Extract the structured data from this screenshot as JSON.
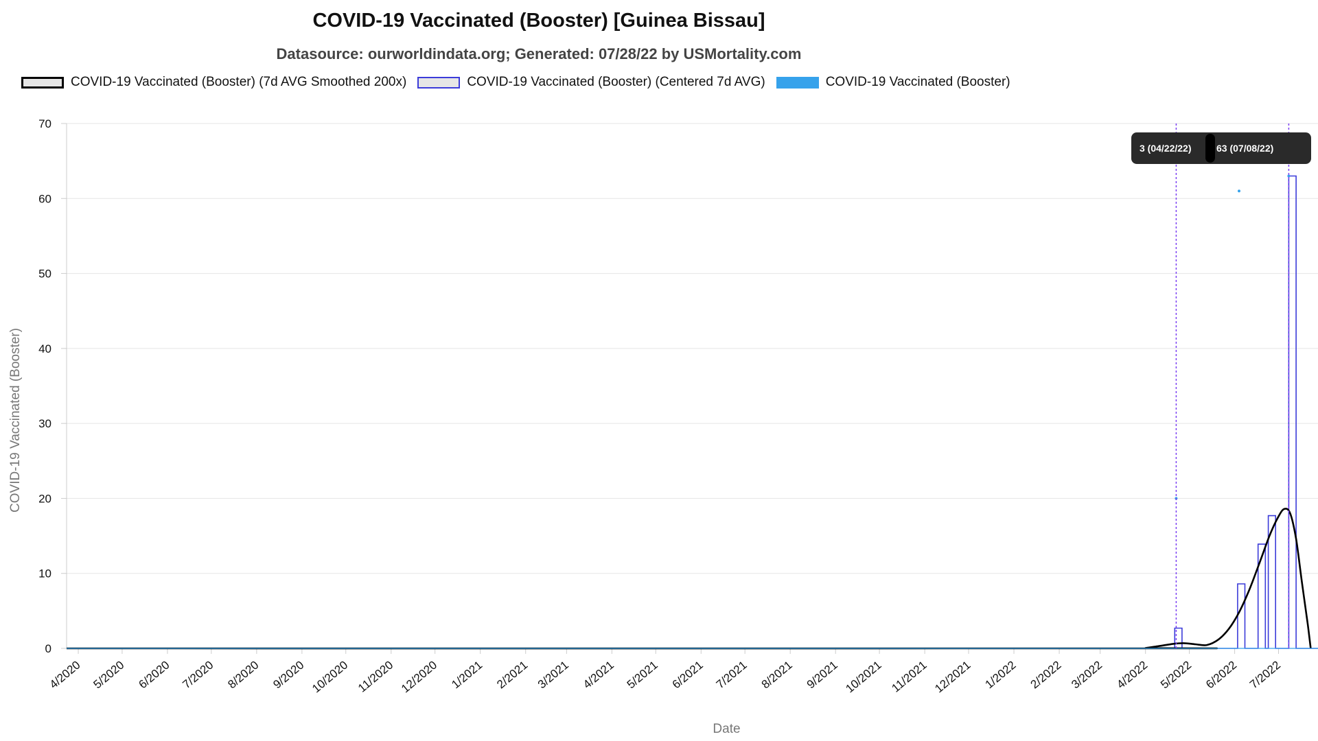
{
  "title": "COVID-19 Vaccinated (Booster) [Guinea Bissau]",
  "subtitle": "Datasource: ourworldindata.org; Generated: 07/28/22 by USMortality.com",
  "legend": [
    {
      "label": "COVID-19 Vaccinated (Booster) (7d AVG Smoothed 200x)",
      "swatch_fill": "#e6e6e6",
      "swatch_border": "#000000"
    },
    {
      "label": "COVID-19 Vaccinated (Booster) (Centered 7d AVG)",
      "swatch_fill": "#e6e6e6",
      "swatch_border": "#3b3bd9"
    },
    {
      "label": "COVID-19 Vaccinated (Booster)",
      "swatch_fill": "#36a2eb",
      "swatch_border": "#36a2eb"
    }
  ],
  "tooltips": [
    {
      "text": "3 (04/22/22)"
    },
    {
      "text": "63 (07/08/22)"
    }
  ],
  "colors": {
    "smoothed": "#000000",
    "centered": "#3b3bd9",
    "raw": "#36a2eb",
    "marker_line": "#7b3ff2",
    "grid": "#e5e5e5",
    "tooltip_bg": "#2a2a2a"
  },
  "chart_data": {
    "type": "line",
    "title": "COVID-19 Vaccinated (Booster) [Guinea Bissau]",
    "xlabel": "Date",
    "ylabel": "COVID-19 Vaccinated (Booster)",
    "xlim": [
      "2020-03-24",
      "2022-07-28"
    ],
    "ylim": [
      0,
      70
    ],
    "yticks": [
      0,
      10,
      20,
      30,
      40,
      50,
      60,
      70
    ],
    "xticks": [
      {
        "date": "2020-04-01",
        "label": "4/2020"
      },
      {
        "date": "2020-05-01",
        "label": "5/2020"
      },
      {
        "date": "2020-06-01",
        "label": "6/2020"
      },
      {
        "date": "2020-07-01",
        "label": "7/2020"
      },
      {
        "date": "2020-08-01",
        "label": "8/2020"
      },
      {
        "date": "2020-09-01",
        "label": "9/2020"
      },
      {
        "date": "2020-10-01",
        "label": "10/2020"
      },
      {
        "date": "2020-11-01",
        "label": "11/2020"
      },
      {
        "date": "2020-12-01",
        "label": "12/2020"
      },
      {
        "date": "2021-01-01",
        "label": "1/2021"
      },
      {
        "date": "2021-02-01",
        "label": "2/2021"
      },
      {
        "date": "2021-03-01",
        "label": "3/2021"
      },
      {
        "date": "2021-04-01",
        "label": "4/2021"
      },
      {
        "date": "2021-05-01",
        "label": "5/2021"
      },
      {
        "date": "2021-06-01",
        "label": "6/2021"
      },
      {
        "date": "2021-07-01",
        "label": "7/2021"
      },
      {
        "date": "2021-08-01",
        "label": "8/2021"
      },
      {
        "date": "2021-09-01",
        "label": "9/2021"
      },
      {
        "date": "2021-10-01",
        "label": "10/2021"
      },
      {
        "date": "2021-11-01",
        "label": "11/2021"
      },
      {
        "date": "2021-12-01",
        "label": "12/2021"
      },
      {
        "date": "2022-01-01",
        "label": "1/2022"
      },
      {
        "date": "2022-02-01",
        "label": "2/2022"
      },
      {
        "date": "2022-03-01",
        "label": "3/2022"
      },
      {
        "date": "2022-04-01",
        "label": "4/2022"
      },
      {
        "date": "2022-05-01",
        "label": "5/2022"
      },
      {
        "date": "2022-06-01",
        "label": "6/2022"
      },
      {
        "date": "2022-07-01",
        "label": "7/2022"
      }
    ],
    "grid": true,
    "legend_position": "top",
    "marker_lines": [
      "2022-04-22",
      "2022-07-08"
    ],
    "series": [
      {
        "name": "COVID-19 Vaccinated (Booster) (7d AVG Smoothed 200x)",
        "style": "line",
        "points": [
          [
            "2020-03-24",
            0
          ],
          [
            "2022-03-25",
            0
          ],
          [
            "2022-04-01",
            0.05
          ],
          [
            "2022-04-10",
            0.3
          ],
          [
            "2022-04-20",
            0.6
          ],
          [
            "2022-04-27",
            0.7
          ],
          [
            "2022-05-05",
            0.55
          ],
          [
            "2022-05-13",
            0.45
          ],
          [
            "2022-05-21",
            1.2
          ],
          [
            "2022-05-28",
            2.6
          ],
          [
            "2022-06-04",
            4.8
          ],
          [
            "2022-06-11",
            7.8
          ],
          [
            "2022-06-18",
            11.4
          ],
          [
            "2022-06-25",
            15.1
          ],
          [
            "2022-07-01",
            17.6
          ],
          [
            "2022-07-05",
            18.6
          ],
          [
            "2022-07-09",
            18.0
          ],
          [
            "2022-07-13",
            14.6
          ],
          [
            "2022-07-17",
            8.8
          ],
          [
            "2022-07-21",
            3.2
          ],
          [
            "2022-07-23",
            0
          ]
        ]
      },
      {
        "name": "COVID-19 Vaccinated (Booster) (Centered 7d AVG)",
        "style": "step",
        "points": [
          [
            "2020-03-24",
            0
          ],
          [
            "2022-04-21",
            0
          ],
          [
            "2022-04-21",
            2.7
          ],
          [
            "2022-04-26",
            2.7
          ],
          [
            "2022-04-26",
            0
          ],
          [
            "2022-06-03",
            0
          ],
          [
            "2022-06-03",
            8.6
          ],
          [
            "2022-06-08",
            8.6
          ],
          [
            "2022-06-08",
            0
          ],
          [
            "2022-06-17",
            0
          ],
          [
            "2022-06-17",
            13.9
          ],
          [
            "2022-06-22",
            13.9
          ],
          [
            "2022-06-22",
            0
          ],
          [
            "2022-06-24",
            0
          ],
          [
            "2022-06-24",
            17.7
          ],
          [
            "2022-06-29",
            17.7
          ],
          [
            "2022-06-29",
            0
          ],
          [
            "2022-07-08",
            0
          ],
          [
            "2022-07-08",
            63
          ],
          [
            "2022-07-13",
            63
          ],
          [
            "2022-07-13",
            0
          ],
          [
            "2022-07-28",
            0
          ]
        ]
      },
      {
        "name": "COVID-19 Vaccinated (Booster)",
        "style": "points",
        "points": [
          [
            "2022-04-22",
            20
          ],
          [
            "2022-06-04",
            61
          ],
          [
            "2022-07-08",
            63
          ]
        ]
      }
    ]
  }
}
